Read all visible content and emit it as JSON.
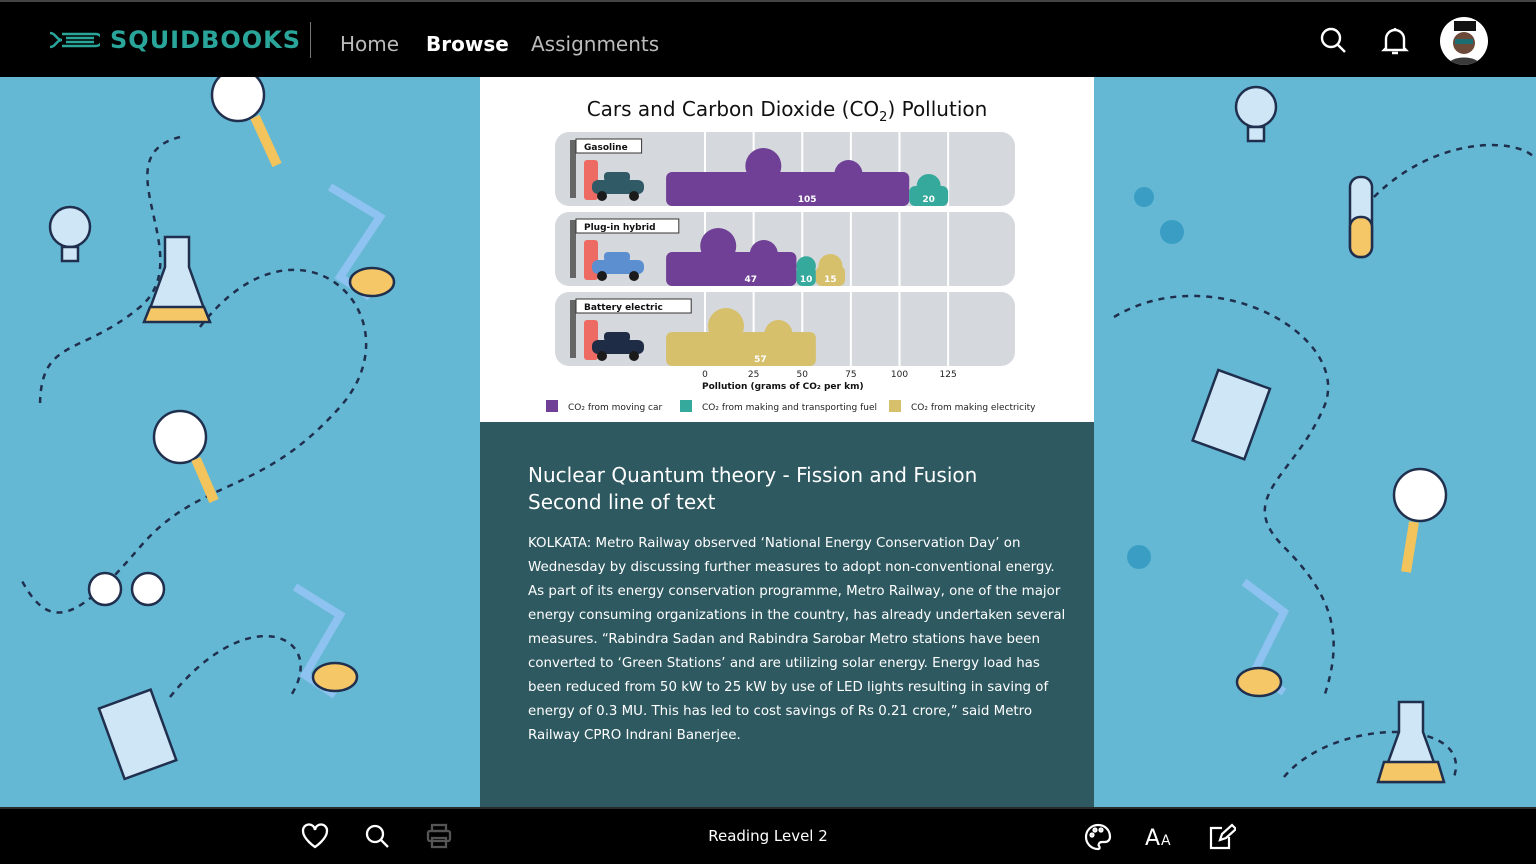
{
  "header": {
    "brand": "SQUIDBOOKS",
    "nav": [
      {
        "label": "Home"
      },
      {
        "label": "Browse",
        "active": true
      },
      {
        "label": "Assignments"
      }
    ],
    "icons": [
      "search-icon",
      "bell-icon",
      "avatar"
    ]
  },
  "colors": {
    "brand": "#2aa59a",
    "background": "#65b8d4",
    "article": "#2e5961",
    "moving": "#6f4096",
    "fuel": "#35a99c",
    "electricity": "#d6c06c"
  },
  "chart_data": {
    "type": "bar",
    "stacked": true,
    "orientation": "horizontal",
    "title": "Cars and Carbon Dioxide (CO",
    "title_sub": "2",
    "title_end": ") Pollution",
    "xlabel": "Pollution (grams of CO₂ per km)",
    "xticks": [
      0,
      25,
      50,
      75,
      100,
      125
    ],
    "xlim": [
      -18,
      150
    ],
    "categories": [
      "Gasoline",
      "Plug-in hybrid",
      "Battery electric"
    ],
    "series": [
      {
        "name": "CO₂ from moving car",
        "color": "#6f4096",
        "values": [
          105,
          47,
          0
        ]
      },
      {
        "name": "CO₂ from making and transporting fuel",
        "color": "#35a99c",
        "values": [
          20,
          10,
          0
        ]
      },
      {
        "name": "CO₂ from making electricity",
        "color": "#d6c06c",
        "values": [
          0,
          15,
          57
        ]
      }
    ],
    "legend": "bottom"
  },
  "article": {
    "title1": "Nuclear Quantum theory - Fission and Fusion",
    "title2": "Second line of text",
    "body": "KOLKATA: Metro Railway observed ‘National Energy Conservation Day’ on Wednesday by discussing further measures to adopt non-conventional energy. As part of its energy conservation programme, Metro Railway, one of the major energy consuming organizations in the country, has already undertaken several measures. “Rabindra Sadan and Rabindra Sarobar Metro stations have been converted to ‘Green Stations’ and are utilizing solar energy. Energy load has been reduced from 50 kW to 25 kW by use of LED lights resulting in saving of energy of 0.3 MU. This has led to cost savings of Rs 0.21 crore,” said Metro Railway CPRO Indrani Banerjee."
  },
  "footer": {
    "reading_level": "Reading Level 2",
    "icons": [
      "heart-icon",
      "search-icon",
      "print-icon",
      "palette-icon",
      "font-size-icon",
      "edit-note-icon"
    ]
  }
}
